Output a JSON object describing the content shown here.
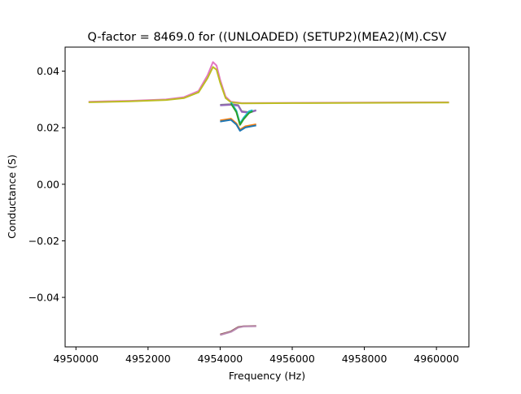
{
  "chart_data": {
    "type": "line",
    "title": "Q-factor = 8469.0 for ((UNLOADED) (SETUP2)(MEA2)(M).CSV",
    "xlabel": "Frequency (Hz)",
    "ylabel": "Conductance (S)",
    "xlim": [
      4949700,
      4960900
    ],
    "ylim": [
      -0.0575,
      0.0485
    ],
    "x_ticks": [
      4950000,
      4952000,
      4954000,
      4956000,
      4958000,
      4960000
    ],
    "x_tick_labels": [
      "4950000",
      "4952000",
      "4954000",
      "4956000",
      "4958000",
      "4960000"
    ],
    "y_ticks": [
      0.04,
      0.02,
      0.0,
      -0.02,
      -0.04
    ],
    "y_tick_labels": [
      "0.04",
      "0.02",
      "0.00",
      "−0.02",
      "−0.04"
    ],
    "grid": false,
    "legend": "none",
    "series": [
      {
        "color": "#e377c2",
        "points": [
          [
            4950350,
            0.0292
          ],
          [
            4951500,
            0.0295
          ],
          [
            4952500,
            0.03
          ],
          [
            4953000,
            0.0308
          ],
          [
            4953400,
            0.033
          ],
          [
            4953650,
            0.0385
          ],
          [
            4953800,
            0.0432
          ],
          [
            4953900,
            0.042
          ],
          [
            4954000,
            0.037
          ],
          [
            4954150,
            0.031
          ],
          [
            4954300,
            0.0292
          ],
          [
            4954600,
            0.0287
          ],
          [
            4956000,
            0.0288
          ],
          [
            4958000,
            0.0289
          ],
          [
            4960350,
            0.029
          ]
        ]
      },
      {
        "color": "#bcbd22",
        "points": [
          [
            4950350,
            0.029
          ],
          [
            4951500,
            0.0293
          ],
          [
            4952500,
            0.0298
          ],
          [
            4953000,
            0.0305
          ],
          [
            4953400,
            0.0325
          ],
          [
            4953650,
            0.0375
          ],
          [
            4953800,
            0.0415
          ],
          [
            4953900,
            0.0405
          ],
          [
            4954000,
            0.036
          ],
          [
            4954150,
            0.0305
          ],
          [
            4954300,
            0.029
          ],
          [
            4954600,
            0.0286
          ],
          [
            4956000,
            0.0287
          ],
          [
            4958000,
            0.0288
          ],
          [
            4960350,
            0.0289
          ]
        ]
      },
      {
        "color": "#7f7f7f",
        "points": [
          [
            4954000,
            0.0281
          ],
          [
            4954300,
            0.0283
          ],
          [
            4954500,
            0.028
          ],
          [
            4954600,
            0.0258
          ],
          [
            4954800,
            0.0255
          ],
          [
            4955000,
            0.0262
          ]
        ]
      },
      {
        "color": "#9467bd",
        "points": [
          [
            4954000,
            0.0279
          ],
          [
            4954300,
            0.0281
          ],
          [
            4954500,
            0.0278
          ],
          [
            4954600,
            0.0256
          ],
          [
            4954800,
            0.0253
          ],
          [
            4955000,
            0.0261
          ]
        ]
      },
      {
        "color": "#17becf",
        "points": [
          [
            4954300,
            0.029
          ],
          [
            4954450,
            0.026
          ],
          [
            4954550,
            0.0215
          ],
          [
            4954650,
            0.0235
          ],
          [
            4954800,
            0.0258
          ],
          [
            4954900,
            0.0262
          ]
        ]
      },
      {
        "color": "#2ca02c",
        "points": [
          [
            4954300,
            0.0286
          ],
          [
            4954450,
            0.0255
          ],
          [
            4954550,
            0.021
          ],
          [
            4954650,
            0.023
          ],
          [
            4954800,
            0.0252
          ],
          [
            4954900,
            0.0258
          ]
        ]
      },
      {
        "color": "#ff7f0e",
        "points": [
          [
            4954000,
            0.0226
          ],
          [
            4954300,
            0.0232
          ],
          [
            4954450,
            0.0215
          ],
          [
            4954550,
            0.0193
          ],
          [
            4954700,
            0.0205
          ],
          [
            4955000,
            0.0212
          ]
        ]
      },
      {
        "color": "#1f77b4",
        "points": [
          [
            4954000,
            0.0222
          ],
          [
            4954300,
            0.0228
          ],
          [
            4954450,
            0.0211
          ],
          [
            4954550,
            0.0189
          ],
          [
            4954700,
            0.0201
          ],
          [
            4955000,
            0.0208
          ]
        ]
      },
      {
        "color": "#8c564b",
        "points": [
          [
            4954000,
            -0.0531
          ],
          [
            4954300,
            -0.052
          ],
          [
            4954500,
            -0.0505
          ],
          [
            4954650,
            -0.0502
          ],
          [
            4955000,
            -0.0501
          ]
        ]
      },
      {
        "color": "#b98ab1",
        "points": [
          [
            4954000,
            -0.0533
          ],
          [
            4954300,
            -0.0522
          ],
          [
            4954500,
            -0.0507
          ],
          [
            4954650,
            -0.0503
          ],
          [
            4955000,
            -0.0502
          ]
        ]
      }
    ]
  }
}
